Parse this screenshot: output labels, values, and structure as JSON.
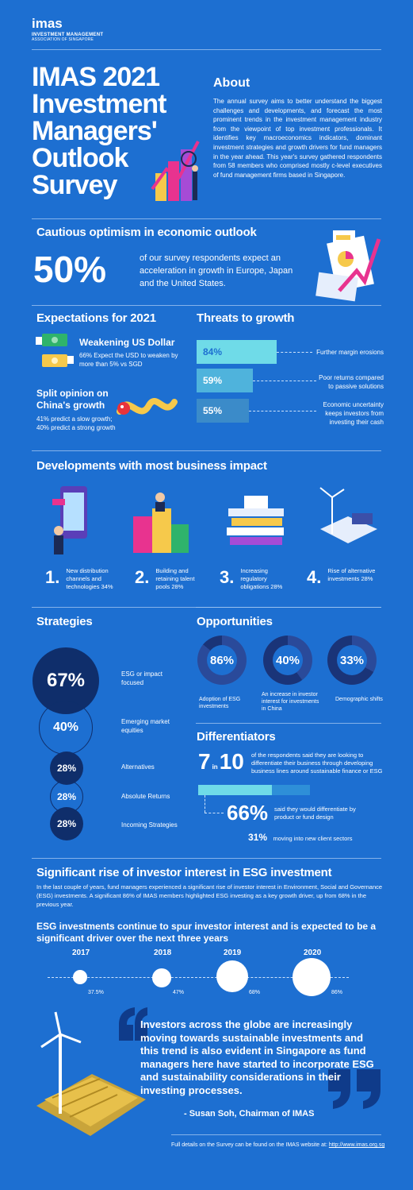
{
  "brand": {
    "logo": "imas",
    "line1": "INVESTMENT MANAGEMENT",
    "line2": "ASSOCIATION OF SINGAPORE"
  },
  "hero": {
    "title_lines": [
      "IMAS 2021",
      "Investment",
      "Managers'",
      "Outlook",
      "Survey"
    ]
  },
  "about": {
    "heading": "About",
    "text": "The annual survey aims to better understand the biggest challenges and developments, and forecast the most prominent trends in the investment management industry from the viewpoint of top investment professionals. It identifies key macroeconomics indicators, dominant investment strategies and growth drivers for fund managers in the year ahead. This year's survey gathered respondents from 58 members who comprised mostly c-level executives of fund management firms based in Singapore."
  },
  "optimism": {
    "heading": "Cautious optimism in economic outlook",
    "percent": "50%",
    "text": "of our survey respondents expect an acceleration in growth in Europe, Japan and the United States."
  },
  "expectations": {
    "heading": "Expectations for 2021",
    "usd_title": "Weakening US Dollar",
    "usd_text": "66% Expect the USD to weaken by more than 5% vs SGD",
    "china_title": "Split opinion on China's growth",
    "china_text": "41% predict a slow growth; 40% predict a strong growth"
  },
  "threats": {
    "heading": "Threats to growth",
    "items": [
      {
        "pct": "84%",
        "label": "Further margin erosions",
        "value": 84
      },
      {
        "pct": "59%",
        "label": "Poor returns compared to passive solutions",
        "value": 59
      },
      {
        "pct": "55%",
        "label": "Economic uncertainty keeps investors from investing their cash",
        "value": 55
      }
    ]
  },
  "developments": {
    "heading": "Developments with most business impact",
    "items": [
      {
        "n": "1.",
        "label": "New distribution channels and technologies 34%"
      },
      {
        "n": "2.",
        "label": "Building and retaining talent pools 28%"
      },
      {
        "n": "3.",
        "label": "Increasing regulatory obligations 28%"
      },
      {
        "n": "4.",
        "label": "Rise of alternative investments 28%"
      }
    ]
  },
  "strategies": {
    "heading": "Strategies",
    "items": [
      {
        "pct": "67%",
        "label": "ESG or impact focused"
      },
      {
        "pct": "40%",
        "label": "Emerging market equities"
      },
      {
        "pct": "28%",
        "label": "Alternatives"
      },
      {
        "pct": "28%",
        "label": "Absolute Returns"
      },
      {
        "pct": "28%",
        "label": "Incoming Strategies"
      }
    ]
  },
  "opportunities": {
    "heading": "Opportunities",
    "items": [
      {
        "pct": "86%",
        "value": 86,
        "label": "Adoption of ESG investments"
      },
      {
        "pct": "40%",
        "value": 40,
        "label": "An increase in investor interest for investments in China"
      },
      {
        "pct": "33%",
        "value": 33,
        "label": "Demographic shifts"
      }
    ]
  },
  "differentiators": {
    "heading": "Differentiators",
    "seven": "7",
    "in": "in",
    "ten": "10",
    "seven_text": "of the respondents said they are looking to differentiate their business through developing business lines around sustainable finance or ESG",
    "bar_fill": 0.66,
    "pct66": "66%",
    "text66": "said they would differentiate by product or fund design",
    "pct31": "31%",
    "text31": "moving into new client sectors"
  },
  "esg": {
    "heading": "Significant rise of investor interest in ESG investment",
    "intro": "In the last couple of years, fund managers experienced a significant rise of investor interest in Environment, Social and Governance (ESG) investments. A significant 86% of IMAS members highlighted ESG investing as a key growth driver, up from 68% in the previous year.",
    "subheading": "ESG investments continue to spur investor interest and is expected to be a significant driver over the next three years",
    "timeline": [
      {
        "year": "2017",
        "pct": "37.5%",
        "value": 37.5
      },
      {
        "year": "2018",
        "pct": "47%",
        "value": 47
      },
      {
        "year": "2019",
        "pct": "68%",
        "value": 68
      },
      {
        "year": "2020",
        "pct": "86%",
        "value": 86
      }
    ]
  },
  "quote": {
    "text": "Investors across the globe are increasingly moving towards sustainable investments and this trend is also evident in Singapore as fund managers here have started to incorporate ESG and sustainability considerations in their investing processes.",
    "author": "- Susan Soh, Chairman of IMAS"
  },
  "footer": {
    "text": "Full details on the Survey can be found on the IMAS website at: ",
    "link": "http://www.imas.org.sg"
  }
}
